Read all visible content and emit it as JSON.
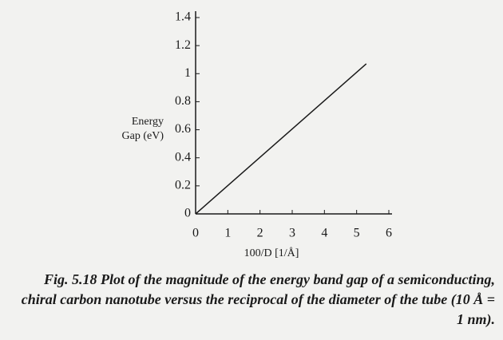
{
  "chart_data": {
    "type": "line",
    "ylabel": [
      "Energy",
      "Gap (eV)"
    ],
    "xlabel": "100/D [1/Å]",
    "x": [
      0,
      5.3
    ],
    "series": [
      {
        "color": "#1a1a1a",
        "values": [
          0,
          1.07
        ]
      }
    ],
    "xlim": [
      0,
      6
    ],
    "xticks": [
      0,
      1,
      2,
      3,
      4,
      5,
      6
    ],
    "ylim": [
      0,
      1.4
    ],
    "yticks": [
      0,
      0.2,
      0.4,
      0.6,
      0.8,
      1,
      1.2,
      1.4
    ],
    "caption": "Fig. 5.18 Plot of the magnitude of the energy band gap of a semiconducting, chiral carbon nanotube versus the reciprocal of the diameter of the tube (10 Å = 1 nm)."
  }
}
